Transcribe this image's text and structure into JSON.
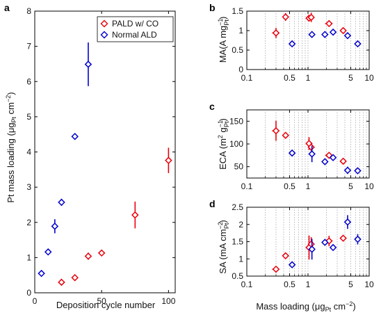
{
  "chart_data": [
    {
      "panel": "a",
      "type": "scatter",
      "xlabel": "Deposition cycle number",
      "ylabel": "Pt mass loading (μg",
      "ylabel_sub": "Pt",
      "ylabel_tail": " cm",
      "ylabel_sup": "−2",
      "ylabel_close": ")",
      "xlim": [
        0,
        105
      ],
      "ylim": [
        0,
        8
      ],
      "xticks": [
        0,
        50,
        100
      ],
      "yticks": [
        0,
        1,
        2,
        3,
        4,
        5,
        6,
        7,
        8
      ],
      "legend": {
        "position": "top-right"
      },
      "series": [
        {
          "name": "PALD w/ CO",
          "color": "#e8000b",
          "points": [
            {
              "x": 20,
              "y": 0.3,
              "err": 0.08
            },
            {
              "x": 30,
              "y": 0.43,
              "err": 0.09
            },
            {
              "x": 40,
              "y": 1.04,
              "err": 0.1
            },
            {
              "x": 50,
              "y": 1.13,
              "err": 0.07
            },
            {
              "x": 75,
              "y": 2.21,
              "err": 0.38
            },
            {
              "x": 100,
              "y": 3.76,
              "err": 0.36
            }
          ]
        },
        {
          "name": "Normal ALD",
          "color": "#0000cc",
          "points": [
            {
              "x": 5,
              "y": 0.55,
              "err": 0.06
            },
            {
              "x": 10,
              "y": 1.16,
              "err": 0.08
            },
            {
              "x": 15,
              "y": 1.89,
              "err": 0.2
            },
            {
              "x": 20,
              "y": 2.57,
              "err": 0.1
            },
            {
              "x": 30,
              "y": 4.44,
              "err": 0.08
            },
            {
              "x": 40,
              "y": 6.49,
              "err": 0.62
            }
          ]
        }
      ]
    },
    {
      "panel": "b",
      "type": "scatter",
      "ylabel": "MA(A mg",
      "ylabel_sup": "−1",
      "ylabel_sub": "Pt",
      "ylabel_close": ")",
      "xscale": "log",
      "xlim": [
        0.1,
        10
      ],
      "ylim": [
        0,
        1.5
      ],
      "xticks": [
        0.1,
        0.5,
        1,
        5,
        10
      ],
      "xtick_labels": [
        "0.1",
        "0.5",
        "1",
        "5",
        "10"
      ],
      "yticks": [
        0,
        0.5,
        1,
        1.5
      ],
      "ytick_labels": [
        "0",
        "0.5",
        "1",
        "1.5"
      ],
      "series": [
        {
          "name": "PALD w/ CO",
          "color": "#e8000b",
          "points": [
            {
              "x": 0.3,
              "y": 0.94,
              "xerr": 0.04,
              "err": 0.13
            },
            {
              "x": 0.43,
              "y": 1.35,
              "xerr": 0.04,
              "err": 0.1
            },
            {
              "x": 1.04,
              "y": 1.32,
              "xerr": 0.05,
              "err": 0.08
            },
            {
              "x": 1.13,
              "y": 1.34,
              "xerr": 0.05,
              "err": 0.12
            },
            {
              "x": 2.21,
              "y": 1.18,
              "xerr": 0.3,
              "err": 0.05
            },
            {
              "x": 3.76,
              "y": 1.0,
              "xerr": 0.3,
              "err": 0.05
            }
          ]
        },
        {
          "name": "Normal ALD",
          "color": "#0000cc",
          "points": [
            {
              "x": 0.55,
              "y": 0.66,
              "xerr": 0.05,
              "err": 0.03
            },
            {
              "x": 1.16,
              "y": 0.9,
              "xerr": 0.06,
              "err": 0.03
            },
            {
              "x": 1.89,
              "y": 0.9,
              "xerr": 0.16,
              "err": 0.03
            },
            {
              "x": 2.57,
              "y": 0.96,
              "xerr": 0.1,
              "err": 0.03
            },
            {
              "x": 4.44,
              "y": 0.87,
              "xerr": 0.1,
              "err": 0.03
            },
            {
              "x": 6.49,
              "y": 0.66,
              "xerr": 0.5,
              "err": 0.03
            }
          ]
        }
      ]
    },
    {
      "panel": "c",
      "type": "scatter",
      "ylabel": "ECA (m",
      "ylabel_sup": "2",
      "ylabel_tail": " g",
      "ylabel_sup2": "−1",
      "ylabel_sub": "Pt",
      "ylabel_close": ")",
      "xscale": "log",
      "xlim": [
        0.1,
        10
      ],
      "ylim": [
        25,
        175
      ],
      "xticks": [
        0.1,
        0.5,
        1,
        5,
        10
      ],
      "xtick_labels": [
        "0.1",
        "0.5",
        "1",
        "5",
        "10"
      ],
      "yticks": [
        50,
        100,
        150
      ],
      "ytick_labels": [
        "50",
        "100",
        "150"
      ],
      "series": [
        {
          "name": "PALD w/ CO",
          "color": "#e8000b",
          "points": [
            {
              "x": 0.3,
              "y": 129,
              "xerr": 0.04,
              "err": 22
            },
            {
              "x": 0.43,
              "y": 119,
              "xerr": 0.04,
              "err": 7
            },
            {
              "x": 1.04,
              "y": 101,
              "xerr": 0.05,
              "err": 14
            },
            {
              "x": 1.13,
              "y": 93,
              "xerr": 0.05,
              "err": 9
            },
            {
              "x": 2.21,
              "y": 75,
              "xerr": 0.3,
              "err": 5
            },
            {
              "x": 3.76,
              "y": 62,
              "xerr": 0.3,
              "err": 4
            }
          ]
        },
        {
          "name": "Normal ALD",
          "color": "#0000cc",
          "points": [
            {
              "x": 0.55,
              "y": 80,
              "xerr": 0.05,
              "err": 5
            },
            {
              "x": 1.16,
              "y": 78,
              "xerr": 0.06,
              "err": 18
            },
            {
              "x": 1.89,
              "y": 61,
              "xerr": 0.16,
              "err": 5
            },
            {
              "x": 2.57,
              "y": 70,
              "xerr": 0.1,
              "err": 5
            },
            {
              "x": 4.44,
              "y": 42,
              "xerr": 0.1,
              "err": 8
            },
            {
              "x": 6.49,
              "y": 41,
              "xerr": 0.5,
              "err": 5
            }
          ]
        }
      ]
    },
    {
      "panel": "d",
      "type": "scatter",
      "xlabel": "Mass loading (μg",
      "xlabel_sub": "Pt",
      "xlabel_tail": " cm",
      "xlabel_sup": "−2",
      "xlabel_close": ")",
      "ylabel": "SA (mA cm",
      "ylabel_sup": "−2",
      "ylabel_sub": "Pt",
      "ylabel_close": ")",
      "xscale": "log",
      "xlim": [
        0.1,
        10
      ],
      "ylim": [
        0.5,
        2.5
      ],
      "xticks": [
        0.1,
        0.5,
        1,
        5,
        10
      ],
      "xtick_labels": [
        "0.1",
        "0.5",
        "1",
        "5",
        "10"
      ],
      "yticks": [
        0.5,
        1,
        1.5,
        2,
        2.5
      ],
      "ytick_labels": [
        "0.5",
        "1",
        "1.5",
        "2",
        "2.5"
      ],
      "series": [
        {
          "name": "PALD w/ CO",
          "color": "#e8000b",
          "points": [
            {
              "x": 0.3,
              "y": 0.7,
              "xerr": 0.04,
              "err": 0.07
            },
            {
              "x": 0.43,
              "y": 1.09,
              "xerr": 0.04,
              "err": 0.08
            },
            {
              "x": 1.04,
              "y": 1.33,
              "xerr": 0.05,
              "err": 0.35
            },
            {
              "x": 1.13,
              "y": 1.43,
              "xerr": 0.05,
              "err": 0.2
            },
            {
              "x": 2.21,
              "y": 1.52,
              "xerr": 0.3,
              "err": 0.15
            },
            {
              "x": 3.76,
              "y": 1.6,
              "xerr": 0.3,
              "err": 0.05
            }
          ]
        },
        {
          "name": "Normal ALD",
          "color": "#0000cc",
          "points": [
            {
              "x": 0.55,
              "y": 0.83,
              "xerr": 0.05,
              "err": 0.04
            },
            {
              "x": 1.16,
              "y": 1.28,
              "xerr": 0.06,
              "err": 0.3
            },
            {
              "x": 1.89,
              "y": 1.48,
              "xerr": 0.16,
              "err": 0.06
            },
            {
              "x": 2.57,
              "y": 1.33,
              "xerr": 0.1,
              "err": 0.06
            },
            {
              "x": 4.44,
              "y": 2.07,
              "xerr": 0.1,
              "err": 0.2
            },
            {
              "x": 6.49,
              "y": 1.57,
              "xerr": 0.5,
              "err": 0.15
            }
          ]
        }
      ]
    }
  ]
}
